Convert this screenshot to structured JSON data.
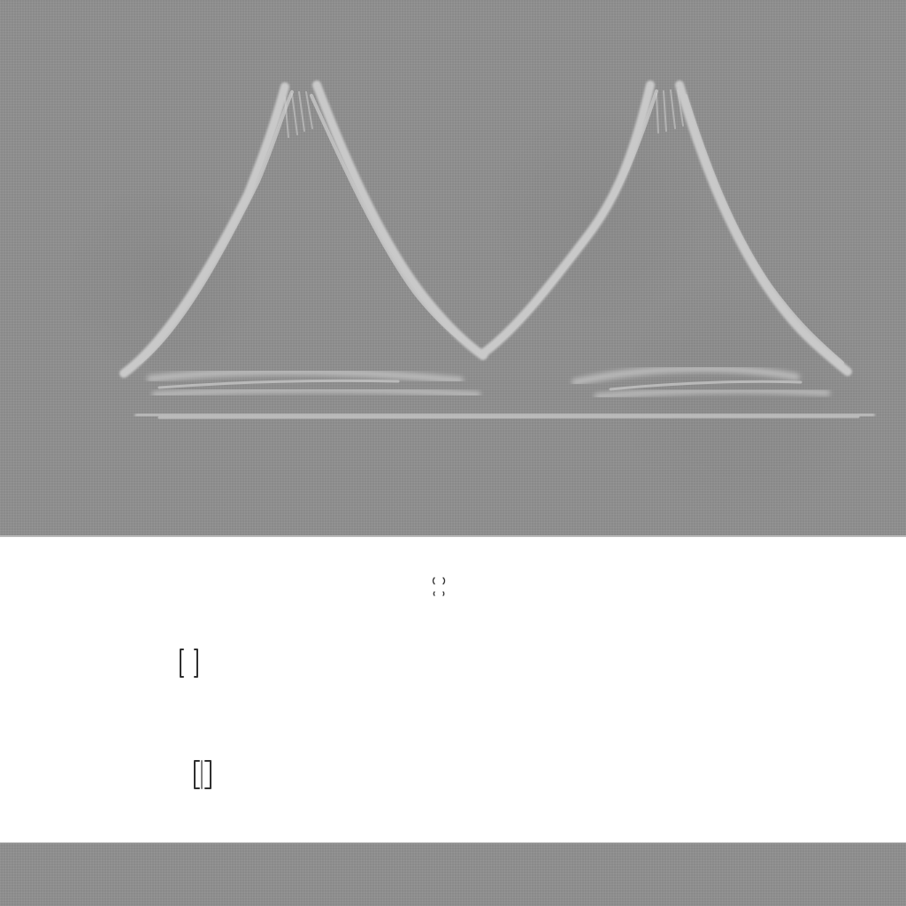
{
  "colors": {
    "background_panel": "#8f8f8f",
    "sketch_stroke": "#c8c8c8",
    "dark_marks": "#2f2f2f",
    "page_background": "#ffffff"
  },
  "icons": {
    "top_sketch": "twin-peaks-sketch",
    "marker_cluster": "small-mark-cluster",
    "bracket_a": "bracket-mark",
    "bracket_b": "bracket-mark"
  }
}
